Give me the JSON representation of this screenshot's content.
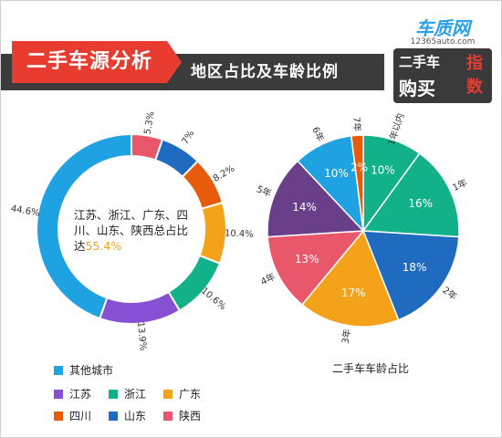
{
  "header": {
    "title": "二手车源分析",
    "subtitle": "地区占比及车龄比例",
    "logo": {
      "brand": "车质网",
      "url": "12365auto.com",
      "line1": "二手车",
      "line2": "购买",
      "highlight1": "指",
      "highlight2": "数"
    }
  },
  "chart_data": [
    {
      "type": "pie",
      "style": "donut",
      "values": [
        44.6,
        13.9,
        10.6,
        10.4,
        8.2,
        7.0,
        5.3
      ],
      "labels": [
        "44.6%",
        "13.9%",
        "10.6%",
        "10.4%",
        "8.2%",
        "7%",
        "5.3%"
      ],
      "colors": [
        "#1fa2e2",
        "#8650d4",
        "#12b18a",
        "#f5a21b",
        "#e85b0c",
        "#1f6bbf",
        "#e8586a"
      ],
      "center_text": {
        "line1": "江苏、浙江、广东、四",
        "line2": "川、山东、陕西总占比",
        "line3_prefix": "达",
        "highlight": "55.4%"
      },
      "legend": [
        "其他城市",
        "江苏",
        "浙江",
        "广东",
        "四川",
        "山东",
        "陕西"
      ],
      "legend_placement": "bottom"
    },
    {
      "type": "pie",
      "categories": [
        "1年以内",
        "1年",
        "2年",
        "3年",
        "4年",
        "5年",
        "6年",
        "7年"
      ],
      "values": [
        10,
        16,
        18,
        17,
        13,
        14,
        10,
        2
      ],
      "labels": [
        "10%",
        "16%",
        "18%",
        "17%",
        "13%",
        "14%",
        "10%",
        "2%"
      ],
      "colors": [
        "#12b18a",
        "#12b18a",
        "#1f6bbf",
        "#f5a21b",
        "#e8586a",
        "#6a3f8a",
        "#1fa2e2",
        "#e85b0c"
      ],
      "caption": "二手车车龄占比"
    }
  ]
}
